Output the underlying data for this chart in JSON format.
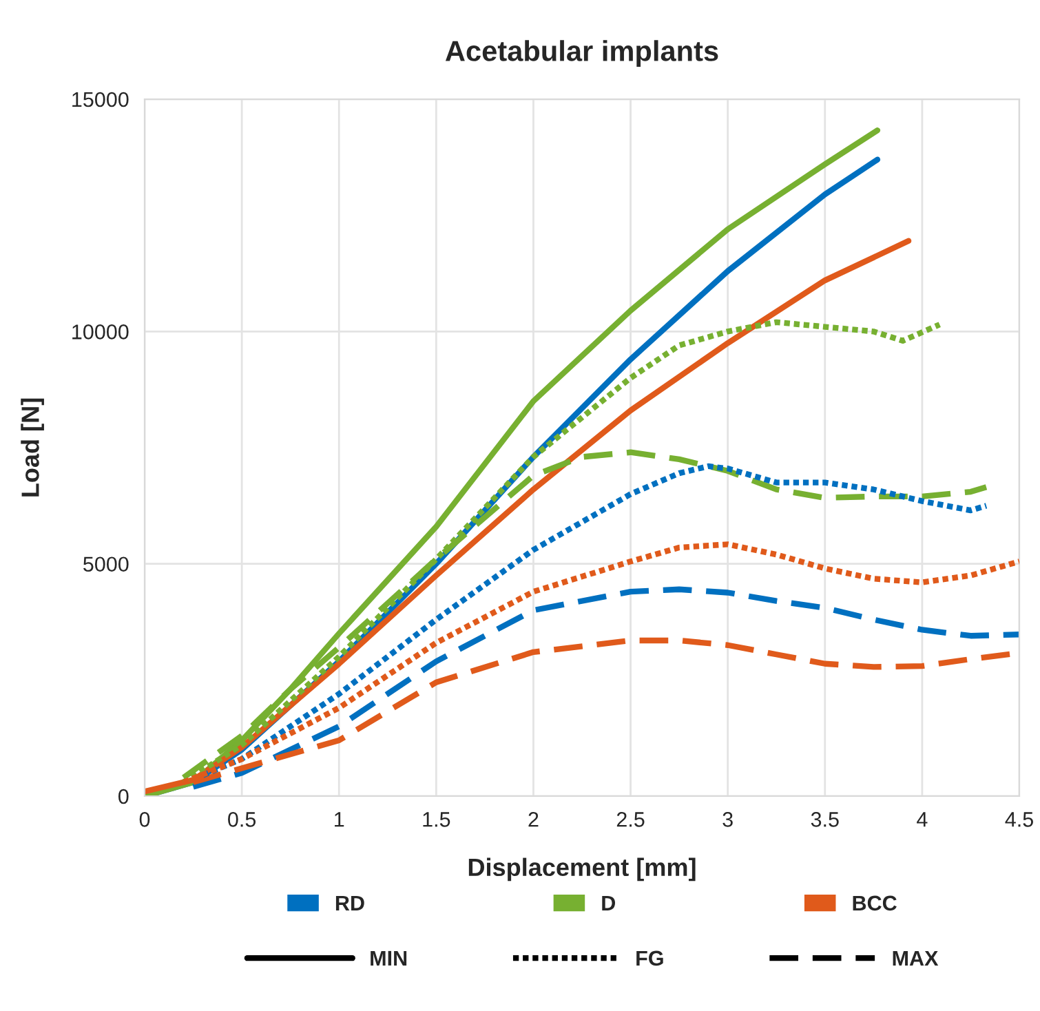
{
  "chart_data": {
    "type": "line",
    "title": "Acetabular implants",
    "xlabel": "Displacement [mm]",
    "ylabel": "Load [N]",
    "xlim": [
      0,
      4.5
    ],
    "xticks": [
      0,
      0.5,
      1,
      1.5,
      2,
      2.5,
      3,
      3.5,
      4,
      4.5
    ],
    "ylim": [
      0,
      15000
    ],
    "yticks": [
      0,
      5000,
      10000,
      15000
    ],
    "grid": true,
    "legend": "bottom",
    "marker": "none",
    "series": [
      {
        "name": "RD",
        "color": "#0070c0",
        "line_style": "solid",
        "x": [
          0,
          0.25,
          0.5,
          1.0,
          1.5,
          2.0,
          2.5,
          3.0,
          3.5,
          3.77
        ],
        "values": [
          0,
          300,
          1000,
          2900,
          5000,
          7300,
          9400,
          11300,
          12950,
          13700
        ]
      },
      {
        "name": "D",
        "color": "#77b031",
        "line_style": "solid",
        "x": [
          0,
          0.25,
          0.5,
          0.75,
          1.0,
          1.5,
          2.0,
          2.5,
          3.0,
          3.5,
          3.77
        ],
        "values": [
          0,
          300,
          1200,
          2300,
          3500,
          5800,
          8500,
          10450,
          12200,
          13600,
          14330
        ]
      },
      {
        "name": "BCC",
        "color": "#e05a1b",
        "line_style": "solid",
        "x": [
          0,
          0.25,
          0.5,
          1.0,
          1.5,
          2.0,
          2.5,
          3.0,
          3.5,
          3.93
        ],
        "values": [
          100,
          350,
          1050,
          2850,
          4750,
          6600,
          8300,
          9750,
          11100,
          11950
        ]
      },
      {
        "color": "#0070c0",
        "line_style": "dotted",
        "x": [
          0.3,
          0.5,
          1.0,
          1.5,
          2.0,
          2.5,
          2.75,
          2.9,
          3.0,
          3.25,
          3.5,
          3.75,
          4.0,
          4.25,
          4.33
        ],
        "values": [
          450,
          800,
          2200,
          3800,
          5300,
          6500,
          6950,
          7100,
          7050,
          6750,
          6750,
          6600,
          6350,
          6150,
          6250
        ]
      },
      {
        "color": "#77b031",
        "line_style": "dotted",
        "x": [
          0.2,
          0.5,
          1.0,
          1.5,
          2.0,
          2.5,
          2.75,
          3.0,
          3.25,
          3.5,
          3.75,
          3.9,
          4.09
        ],
        "values": [
          300,
          1100,
          3000,
          5100,
          7300,
          9000,
          9700,
          10000,
          10200,
          10100,
          10000,
          9800,
          10150
        ]
      },
      {
        "color": "#e05a1b",
        "line_style": "dotted",
        "x": [
          0.2,
          0.5,
          1.0,
          1.5,
          2.0,
          2.5,
          2.75,
          3.0,
          3.25,
          3.5,
          3.75,
          4.0,
          4.25,
          4.5
        ],
        "values": [
          300,
          800,
          1900,
          3300,
          4400,
          5050,
          5350,
          5420,
          5200,
          4900,
          4680,
          4600,
          4750,
          5050
        ]
      },
      {
        "color": "#0070c0",
        "line_style": "dashed",
        "x": [
          0.25,
          0.5,
          1.0,
          1.5,
          2.0,
          2.5,
          2.75,
          3.0,
          3.25,
          3.5,
          3.75,
          4.0,
          4.25,
          4.5
        ],
        "values": [
          200,
          500,
          1500,
          2900,
          4000,
          4400,
          4450,
          4380,
          4200,
          4050,
          3800,
          3580,
          3450,
          3480
        ]
      },
      {
        "color": "#77b031",
        "line_style": "dashed",
        "x": [
          0.2,
          0.5,
          0.75,
          1.0,
          1.5,
          2.0,
          2.25,
          2.5,
          2.75,
          3.0,
          3.25,
          3.5,
          3.75,
          4.0,
          4.25,
          4.33
        ],
        "values": [
          400,
          1300,
          2300,
          3200,
          5100,
          6900,
          7300,
          7400,
          7250,
          7000,
          6600,
          6420,
          6450,
          6450,
          6550,
          6650
        ]
      },
      {
        "color": "#e05a1b",
        "line_style": "dashed",
        "x": [
          0.25,
          0.5,
          1.0,
          1.5,
          2.0,
          2.5,
          2.75,
          3.0,
          3.25,
          3.5,
          3.75,
          4.0,
          4.25,
          4.5
        ],
        "values": [
          300,
          600,
          1200,
          2450,
          3100,
          3350,
          3350,
          3250,
          3050,
          2850,
          2780,
          2800,
          2950,
          3080
        ]
      },
      {
        "name": "MIN",
        "color": "#000000",
        "line_style": "solid"
      },
      {
        "name": "FG",
        "color": "#000000",
        "line_style": "dotted"
      },
      {
        "name": "MAX",
        "color": "#000000",
        "line_style": "dashed"
      }
    ]
  }
}
